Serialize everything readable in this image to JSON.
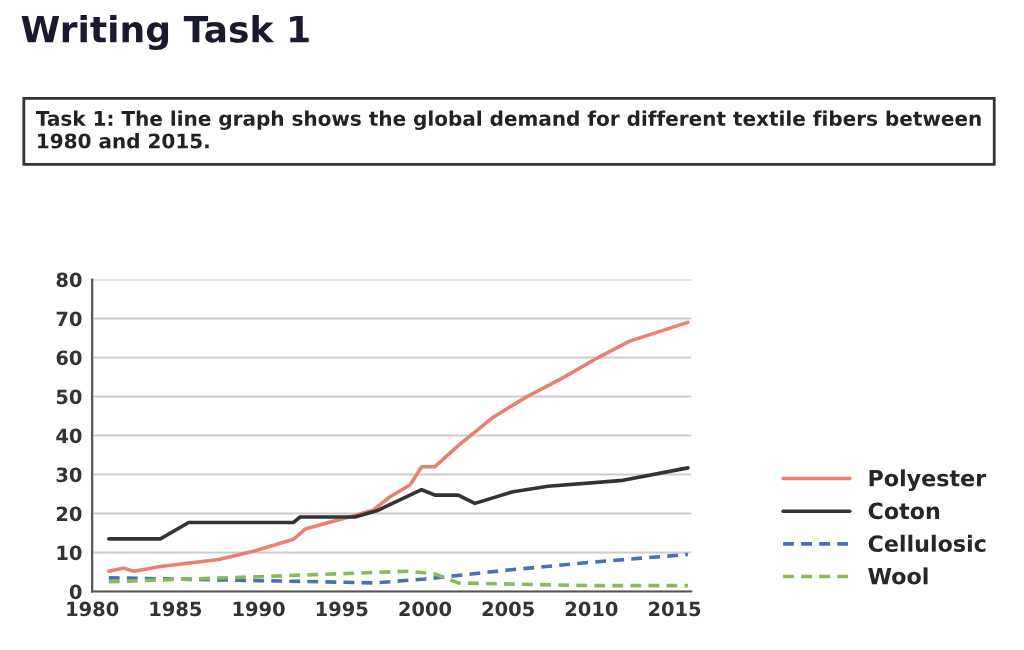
{
  "chart_data": {
    "type": "line",
    "title": "Writing Task 1",
    "subtitle": "Task 1: The line graph shows the global demand for different textile fibers between 1980 and 2015.",
    "xlim": [
      1980,
      2016
    ],
    "xticks": [
      1980,
      1985,
      1990,
      1995,
      2000,
      2005,
      2010,
      2015
    ],
    "ylim": [
      0,
      80
    ],
    "yticks": [
      0,
      10,
      20,
      30,
      40,
      50,
      60,
      70,
      80
    ],
    "grid": "y",
    "legend": "right",
    "marker": "none",
    "series": [
      {
        "name": "Polyester",
        "color": "#e8826e",
        "line_style": "solid",
        "x": [
          1981,
          1981.9,
          1982.5,
          1984.1,
          1987.6,
          1989.7,
          1992.1,
          1992.8,
          1994.2,
          1995.8,
          1996.9,
          1997.9,
          1999.1,
          1999.8,
          2000.6,
          2002,
          2004.1,
          2006.1,
          2008.2,
          2010.2,
          2012.3,
          2015.8
        ],
        "values": [
          5.2,
          6,
          5.2,
          6.4,
          8.2,
          10.3,
          13.4,
          16,
          17.7,
          19.5,
          20.9,
          24.3,
          27.3,
          32,
          32,
          37.4,
          44.7,
          49.9,
          54.6,
          59.5,
          64.2,
          69
        ]
      },
      {
        "name": "Coton",
        "color": "#333333",
        "line_style": "solid",
        "x": [
          1981,
          1984.1,
          1985.8,
          1992.1,
          1992.5,
          1995.8,
          1997.1,
          1999.8,
          2000.6,
          2002,
          2003,
          2005.3,
          2007.4,
          2011.9,
          2015.8
        ],
        "values": [
          13.5,
          13.5,
          17.7,
          17.7,
          19.1,
          19.1,
          20.7,
          26.1,
          24.7,
          24.7,
          22.6,
          25.6,
          27,
          28.5,
          31.7
        ]
      },
      {
        "name": "Cellulosic",
        "color": "#4a6fb5",
        "line_style": "dashed",
        "x": [
          1981,
          1990,
          1997,
          2000,
          2005,
          2010,
          2015.8
        ],
        "values": [
          3.5,
          2.8,
          2.2,
          3.2,
          5.5,
          7.5,
          9.5
        ]
      },
      {
        "name": "Wool",
        "color": "#8db85a",
        "line_style": "dashed",
        "x": [
          1981,
          1990,
          1999,
          2000.6,
          2002,
          2010,
          2015.8
        ],
        "values": [
          2.5,
          3.8,
          5.2,
          4.5,
          2.2,
          1.5,
          1.5
        ]
      }
    ]
  }
}
